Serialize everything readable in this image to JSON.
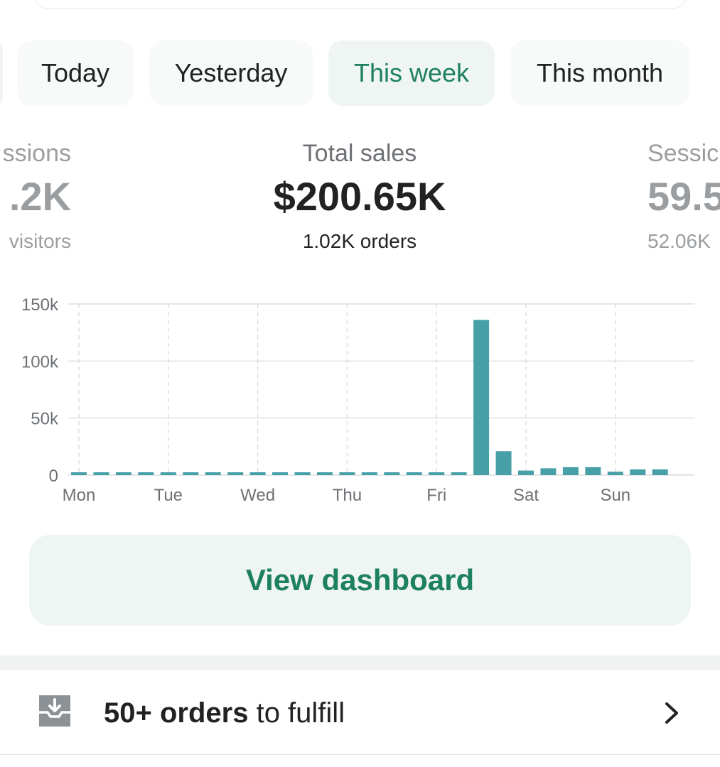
{
  "tabs": [
    {
      "label": "Today",
      "active": false
    },
    {
      "label": "Yesterday",
      "active": false
    },
    {
      "label": "This week",
      "active": true
    },
    {
      "label": "This month",
      "active": false
    }
  ],
  "metrics": {
    "left": {
      "label": "ssions",
      "value": ".2K",
      "sub": "visitors"
    },
    "center": {
      "label": "Total sales",
      "value": "$200.65K",
      "sub": "1.02K orders"
    },
    "right": {
      "label": "Sessic",
      "value": "59.5",
      "sub": "52.06K"
    }
  },
  "chart_data": {
    "type": "bar",
    "x_tick_labels": [
      "Mon",
      "Tue",
      "Wed",
      "Thu",
      "Fri",
      "Sat",
      "Sun"
    ],
    "y_tick_labels": [
      "150k",
      "100k",
      "50k",
      "0"
    ],
    "ylim": [
      0,
      150000
    ],
    "values": [
      2500,
      2500,
      2500,
      2500,
      2500,
      2500,
      2500,
      2500,
      2500,
      2500,
      2500,
      2500,
      2500,
      2500,
      2500,
      2500,
      2500,
      2500,
      136000,
      21000,
      4000,
      6000,
      7000,
      7000,
      3000,
      5000,
      5000,
      1000
    ],
    "bar_color": "#47a0a7",
    "grid": true
  },
  "actions": {
    "view_dashboard": "View dashboard"
  },
  "fulfill_row": {
    "count": "50+ orders",
    "suffix": " to fulfill",
    "icon": "inbox-download-icon"
  },
  "colors": {
    "accent_green": "#1d805e",
    "active_tab_bg": "#eff5f2",
    "bar": "#47a0a7"
  }
}
